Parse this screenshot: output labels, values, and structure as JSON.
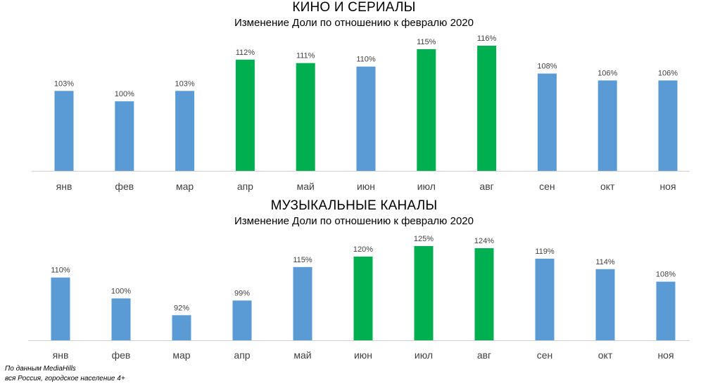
{
  "colors": {
    "base_bar": "#5b9bd5",
    "highlight_bar": "#00b050",
    "axis": "#d0d0d0",
    "label": "#404040"
  },
  "chart_data": [
    {
      "type": "bar",
      "title": "КИНО И СЕРИАЛЫ",
      "subtitle": "Изменение Доли по отношению к февралю 2020",
      "categories": [
        "янв",
        "фев",
        "мар",
        "апр",
        "май",
        "июн",
        "июл",
        "авг",
        "сен",
        "окт",
        "ноя"
      ],
      "values": [
        103,
        100,
        103,
        112,
        111,
        110,
        115,
        116,
        108,
        106,
        106
      ],
      "value_labels": [
        "103%",
        "100%",
        "103%",
        "112%",
        "111%",
        "110%",
        "115%",
        "116%",
        "108%",
        "106%",
        "106%"
      ],
      "highlighted": [
        false,
        false,
        false,
        true,
        true,
        false,
        true,
        true,
        false,
        false,
        false
      ],
      "ylim": [
        80,
        116
      ],
      "grid": false,
      "legend": "none"
    },
    {
      "type": "bar",
      "title": "МУЗЫКАЛЬНЫЕ КАНАЛЫ",
      "subtitle": "Изменение Доли по отношению к февралю 2020",
      "categories": [
        "янв",
        "фев",
        "мар",
        "апр",
        "май",
        "июн",
        "июл",
        "авг",
        "сен",
        "окт",
        "ноя"
      ],
      "values": [
        110,
        100,
        92,
        99,
        115,
        120,
        125,
        124,
        119,
        114,
        108
      ],
      "value_labels": [
        "110%",
        "100%",
        "92%",
        "99%",
        "115%",
        "120%",
        "125%",
        "124%",
        "119%",
        "114%",
        "108%"
      ],
      "highlighted": [
        false,
        false,
        false,
        false,
        false,
        true,
        true,
        true,
        false,
        false,
        false
      ],
      "ylim": [
        80,
        125
      ],
      "grid": false,
      "legend": "none"
    }
  ],
  "footnote": {
    "line1": "По данным MediaHills",
    "line2": "вся Россия, городское население 4+"
  }
}
